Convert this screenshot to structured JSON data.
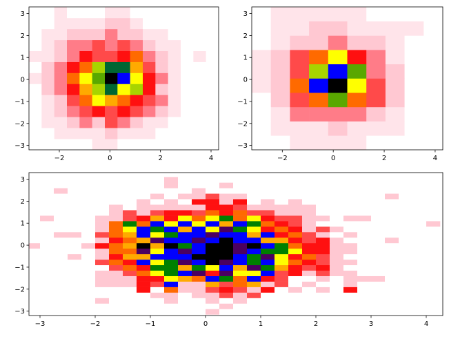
{
  "chart_data": [
    {
      "type": "hist2d",
      "colormap": [
        "#ffffff",
        "#ffe4ea",
        "#ffc8d2",
        "#ff7c88",
        "#ff4a4a",
        "#ff1010",
        "#ff6a00",
        "#ffaa00",
        "#ffff00",
        "#a8d400",
        "#5aa800",
        "#006633",
        "#0000ff",
        "#4b0090",
        "#000000"
      ],
      "xbins": [
        -3.2,
        -2.7,
        -2.2,
        -1.7,
        -1.2,
        -0.7,
        -0.2,
        0.3,
        0.8,
        1.3,
        1.8,
        2.3,
        2.8,
        3.3,
        3.8,
        4.3
      ],
      "ybins": [
        -3.2,
        -2.7,
        -2.2,
        -1.7,
        -1.2,
        -0.7,
        -0.2,
        0.3,
        0.8,
        1.3,
        1.8,
        2.3,
        2.8,
        3.3
      ],
      "counts": [
        [
          0,
          0,
          0,
          0,
          0,
          1,
          1,
          0,
          0,
          0,
          0,
          0,
          0,
          0,
          0
        ],
        [
          0,
          0,
          1,
          1,
          1,
          1,
          2,
          1,
          1,
          1,
          0,
          0,
          0,
          0,
          0
        ],
        [
          0,
          1,
          1,
          2,
          3,
          2,
          4,
          3,
          2,
          1,
          1,
          0,
          0,
          0,
          0
        ],
        [
          0,
          1,
          2,
          3,
          4,
          5,
          4,
          5,
          4,
          3,
          2,
          1,
          0,
          0,
          0
        ],
        [
          0,
          1,
          2,
          4,
          6,
          8,
          7,
          6,
          5,
          4,
          3,
          1,
          0,
          0,
          0
        ],
        [
          0,
          2,
          3,
          5,
          7,
          9,
          11,
          8,
          9,
          5,
          2,
          1,
          0,
          0,
          0
        ],
        [
          1,
          2,
          3,
          6,
          8,
          10,
          14,
          12,
          8,
          5,
          3,
          1,
          0,
          0,
          0
        ],
        [
          0,
          2,
          3,
          5,
          6,
          9,
          11,
          11,
          7,
          4,
          2,
          1,
          0,
          0,
          0
        ],
        [
          1,
          1,
          2,
          3,
          5,
          4,
          4,
          5,
          6,
          3,
          2,
          1,
          0,
          1,
          0
        ],
        [
          0,
          1,
          2,
          3,
          3,
          4,
          3,
          4,
          3,
          2,
          1,
          1,
          0,
          0,
          0
        ],
        [
          0,
          1,
          1,
          2,
          2,
          2,
          3,
          2,
          2,
          1,
          1,
          0,
          0,
          0,
          0
        ],
        [
          0,
          0,
          1,
          1,
          1,
          1,
          2,
          2,
          1,
          0,
          0,
          0,
          0,
          0,
          0
        ],
        [
          0,
          0,
          1,
          0,
          0,
          0,
          1,
          1,
          0,
          0,
          0,
          0,
          0,
          0,
          0
        ]
      ],
      "xlim": [
        -3.2,
        4.3
      ],
      "ylim": [
        -3.2,
        3.3
      ],
      "xticks": [
        {
          "value": -2,
          "label": "−2"
        },
        0,
        2,
        4
      ],
      "yticks": [
        {
          "value": -3,
          "label": "−3"
        },
        {
          "value": -2,
          "label": "−2"
        },
        {
          "value": -1,
          "label": "−1"
        },
        0,
        1,
        2,
        3
      ]
    },
    {
      "type": "hist2d",
      "colormap": [
        "#ffffff",
        "#ffe4ea",
        "#ffc8d2",
        "#ff7c88",
        "#ff4a4a",
        "#ff1010",
        "#ff6a00",
        "#ffaa00",
        "#ffff00",
        "#a8d400",
        "#5aa800",
        "#006633",
        "#0000ff",
        "#4b0090",
        "#000000"
      ],
      "xbins": [
        -3.2,
        -2.45,
        -1.7,
        -0.95,
        -0.2,
        0.55,
        1.3,
        2.05,
        2.8,
        3.55,
        4.3
      ],
      "ybins": [
        -3.2,
        -2.55,
        -1.9,
        -1.25,
        -0.6,
        0.05,
        0.7,
        1.35,
        2.0,
        2.65,
        3.3
      ],
      "counts": [
        [
          0,
          0,
          1,
          1,
          1,
          1,
          0,
          0,
          0,
          0
        ],
        [
          0,
          1,
          1,
          1,
          2,
          1,
          1,
          1,
          0,
          0
        ],
        [
          0,
          1,
          3,
          3,
          3,
          3,
          2,
          1,
          0,
          0
        ],
        [
          0,
          2,
          4,
          6,
          9,
          6,
          4,
          2,
          0,
          0
        ],
        [
          1,
          2,
          6,
          11,
          13,
          7,
          4,
          2,
          0,
          0
        ],
        [
          1,
          2,
          4,
          8,
          11,
          9,
          3,
          2,
          0,
          0
        ],
        [
          1,
          2,
          4,
          6,
          7,
          5,
          3,
          1,
          0,
          0
        ],
        [
          0,
          1,
          2,
          2,
          3,
          2,
          2,
          1,
          0,
          0
        ],
        [
          0,
          1,
          1,
          2,
          2,
          1,
          1,
          1,
          1,
          0
        ],
        [
          0,
          1,
          1,
          1,
          1,
          1,
          0,
          0,
          0,
          0
        ]
      ],
      "xlim": [
        -3.2,
        4.3
      ],
      "ylim": [
        -3.2,
        3.3
      ],
      "xticks": [
        {
          "value": -2,
          "label": "−2"
        },
        0,
        2,
        4
      ],
      "yticks": [
        {
          "value": -3,
          "label": "−3"
        },
        {
          "value": -2,
          "label": "−2"
        },
        {
          "value": -1,
          "label": "−1"
        },
        0,
        1,
        2,
        3
      ]
    },
    {
      "type": "hist2d",
      "colormap": [
        "#ffffff",
        "#ffc8d2",
        "#ff4a4a",
        "#ff1010",
        "#ff6a00",
        "#ffaa00",
        "#ffff00",
        "#008000",
        "#0000ff",
        "#4b0060",
        "#000000"
      ],
      "xbins": [
        -3.25,
        -3.0,
        -2.75,
        -2.5,
        -2.25,
        -2.0,
        -1.75,
        -1.5,
        -1.25,
        -1.0,
        -0.75,
        -0.5,
        -0.25,
        0.0,
        0.25,
        0.5,
        0.75,
        1.0,
        1.25,
        1.5,
        1.75,
        2.0,
        2.25,
        2.5,
        2.75,
        3.0,
        3.25,
        3.5,
        3.75,
        4.0,
        4.25
      ],
      "ybins": [
        -3.15,
        -2.9,
        -2.65,
        -2.4,
        -2.15,
        -1.9,
        -1.65,
        -1.4,
        -1.15,
        -0.9,
        -0.65,
        -0.4,
        -0.15,
        0.1,
        0.35,
        0.6,
        0.85,
        1.1,
        1.35,
        1.6,
        1.85,
        2.1,
        2.35,
        2.6,
        2.85,
        3.1
      ],
      "counts": [
        [
          0,
          0,
          0,
          0,
          0,
          0,
          0,
          0,
          0,
          0,
          0,
          0,
          0,
          1,
          0,
          0,
          0,
          0,
          0,
          0,
          0,
          0,
          0,
          0,
          0,
          0,
          0,
          0,
          0,
          0
        ],
        [
          0,
          0,
          0,
          0,
          0,
          0,
          0,
          0,
          0,
          0,
          0,
          0,
          0,
          0,
          1,
          0,
          0,
          0,
          0,
          0,
          0,
          0,
          0,
          0,
          0,
          0,
          0,
          0,
          0,
          0
        ],
        [
          0,
          0,
          0,
          0,
          0,
          1,
          0,
          0,
          0,
          0,
          1,
          0,
          0,
          1,
          0,
          1,
          0,
          0,
          0,
          0,
          0,
          0,
          0,
          0,
          0,
          0,
          0,
          0,
          0,
          0
        ],
        [
          0,
          0,
          0,
          0,
          0,
          0,
          0,
          0,
          0,
          1,
          1,
          0,
          1,
          1,
          2,
          1,
          2,
          0,
          0,
          0,
          0,
          0,
          0,
          0,
          0,
          0,
          0,
          0,
          0,
          0
        ],
        [
          0,
          0,
          0,
          0,
          0,
          0,
          0,
          0,
          3,
          0,
          4,
          1,
          1,
          2,
          3,
          2,
          1,
          3,
          0,
          1,
          0,
          1,
          0,
          3,
          0,
          0,
          0,
          0,
          0,
          0
        ],
        [
          0,
          0,
          0,
          0,
          0,
          1,
          1,
          1,
          3,
          2,
          8,
          1,
          1,
          5,
          2,
          4,
          5,
          1,
          2,
          0,
          1,
          0,
          0,
          1,
          0,
          0,
          0,
          0,
          0,
          0
        ],
        [
          0,
          0,
          0,
          0,
          0,
          1,
          1,
          1,
          3,
          3,
          6,
          5,
          4,
          8,
          7,
          4,
          8,
          3,
          2,
          0,
          0,
          1,
          0,
          1,
          1,
          1,
          0,
          0,
          0,
          0
        ],
        [
          0,
          0,
          0,
          0,
          0,
          1,
          1,
          2,
          4,
          6,
          7,
          8,
          9,
          3,
          9,
          6,
          6,
          8,
          2,
          3,
          1,
          2,
          1,
          1,
          0,
          0,
          0,
          0,
          0,
          0
        ],
        [
          0,
          0,
          0,
          0,
          0,
          0,
          2,
          4,
          3,
          7,
          7,
          5,
          7,
          6,
          8,
          5,
          9,
          7,
          5,
          3,
          2,
          3,
          1,
          0,
          0,
          0,
          0,
          0,
          0,
          0
        ],
        [
          0,
          0,
          0,
          0,
          0,
          2,
          4,
          3,
          8,
          6,
          7,
          9,
          8,
          10,
          9,
          8,
          7,
          8,
          6,
          4,
          3,
          2,
          1,
          1,
          0,
          0,
          0,
          0,
          0,
          0
        ],
        [
          0,
          0,
          0,
          1,
          0,
          1,
          3,
          5,
          5,
          8,
          8,
          8,
          10,
          10,
          10,
          8,
          7,
          9,
          6,
          3,
          4,
          2,
          1,
          0,
          0,
          0,
          0,
          0,
          0,
          0
        ],
        [
          0,
          0,
          0,
          0,
          0,
          1,
          4,
          4,
          9,
          6,
          8,
          9,
          8,
          10,
          10,
          9,
          8,
          7,
          7,
          6,
          3,
          3,
          1,
          1,
          0,
          0,
          0,
          0,
          0,
          0
        ],
        [
          1,
          0,
          0,
          0,
          1,
          3,
          4,
          5,
          10,
          5,
          10,
          7,
          8,
          10,
          10,
          9,
          10,
          8,
          7,
          4,
          3,
          3,
          1,
          1,
          0,
          0,
          0,
          0,
          0,
          0
        ],
        [
          0,
          0,
          0,
          0,
          0,
          1,
          3,
          4,
          5,
          9,
          8,
          8,
          9,
          8,
          10,
          8,
          8,
          5,
          5,
          3,
          2,
          3,
          1,
          0,
          0,
          0,
          1,
          0,
          0,
          0
        ],
        [
          0,
          0,
          1,
          1,
          0,
          2,
          4,
          5,
          8,
          6,
          7,
          8,
          8,
          9,
          8,
          8,
          5,
          8,
          3,
          4,
          2,
          1,
          0,
          1,
          0,
          0,
          0,
          0,
          0,
          0
        ],
        [
          0,
          0,
          0,
          0,
          0,
          1,
          4,
          6,
          8,
          7,
          8,
          5,
          8,
          6,
          9,
          7,
          6,
          3,
          4,
          3,
          1,
          2,
          1,
          0,
          0,
          0,
          0,
          0,
          0,
          0
        ],
        [
          0,
          0,
          0,
          0,
          0,
          1,
          4,
          7,
          4,
          8,
          6,
          8,
          6,
          8,
          5,
          8,
          7,
          4,
          3,
          2,
          1,
          0,
          0,
          0,
          0,
          0,
          0,
          0,
          0,
          1
        ],
        [
          0,
          1,
          0,
          0,
          0,
          1,
          1,
          2,
          3,
          5,
          3,
          6,
          4,
          6,
          7,
          4,
          6,
          3,
          2,
          2,
          1,
          1,
          0,
          1,
          1,
          0,
          0,
          0,
          0,
          0
        ],
        [
          0,
          0,
          0,
          0,
          0,
          0,
          1,
          2,
          1,
          2,
          3,
          3,
          2,
          4,
          3,
          4,
          2,
          2,
          1,
          1,
          1,
          0,
          0,
          0,
          0,
          0,
          0,
          0,
          0,
          0
        ],
        [
          0,
          0,
          0,
          0,
          0,
          0,
          1,
          0,
          1,
          1,
          1,
          1,
          1,
          3,
          3,
          2,
          1,
          1,
          1,
          1,
          1,
          0,
          0,
          0,
          0,
          0,
          0,
          0,
          0,
          0
        ],
        [
          0,
          0,
          0,
          0,
          0,
          0,
          0,
          0,
          1,
          0,
          1,
          0,
          3,
          3,
          1,
          3,
          0,
          1,
          0,
          1,
          0,
          0,
          0,
          0,
          0,
          0,
          0,
          0,
          0,
          0
        ],
        [
          0,
          0,
          0,
          0,
          0,
          0,
          0,
          0,
          0,
          1,
          0,
          1,
          1,
          2,
          1,
          1,
          0,
          0,
          0,
          0,
          0,
          0,
          0,
          0,
          0,
          0,
          1,
          0,
          0,
          0
        ],
        [
          0,
          0,
          1,
          0,
          0,
          0,
          0,
          0,
          0,
          0,
          0,
          0,
          1,
          0,
          0,
          0,
          0,
          0,
          0,
          0,
          0,
          0,
          0,
          0,
          0,
          0,
          0,
          0,
          0,
          0
        ],
        [
          0,
          0,
          0,
          0,
          0,
          0,
          0,
          0,
          0,
          0,
          1,
          0,
          0,
          0,
          1,
          0,
          0,
          0,
          0,
          0,
          0,
          0,
          0,
          0,
          0,
          0,
          0,
          0,
          0,
          0
        ],
        [
          0,
          0,
          0,
          0,
          0,
          0,
          0,
          0,
          0,
          0,
          1,
          0,
          0,
          0,
          0,
          0,
          0,
          0,
          0,
          0,
          0,
          0,
          0,
          0,
          0,
          0,
          0,
          0,
          0,
          0
        ]
      ],
      "xlim": [
        -3.2,
        4.3
      ],
      "ylim": [
        -3.2,
        3.3
      ],
      "xticks": [
        {
          "value": -3,
          "label": "−3"
        },
        {
          "value": -2,
          "label": "−2"
        },
        {
          "value": -1,
          "label": "−1"
        },
        0,
        1,
        2,
        3,
        4
      ],
      "yticks": [
        {
          "value": -3,
          "label": "−3"
        },
        {
          "value": -2,
          "label": "−2"
        },
        {
          "value": -1,
          "label": "−1"
        },
        0,
        1,
        2,
        3
      ]
    }
  ]
}
